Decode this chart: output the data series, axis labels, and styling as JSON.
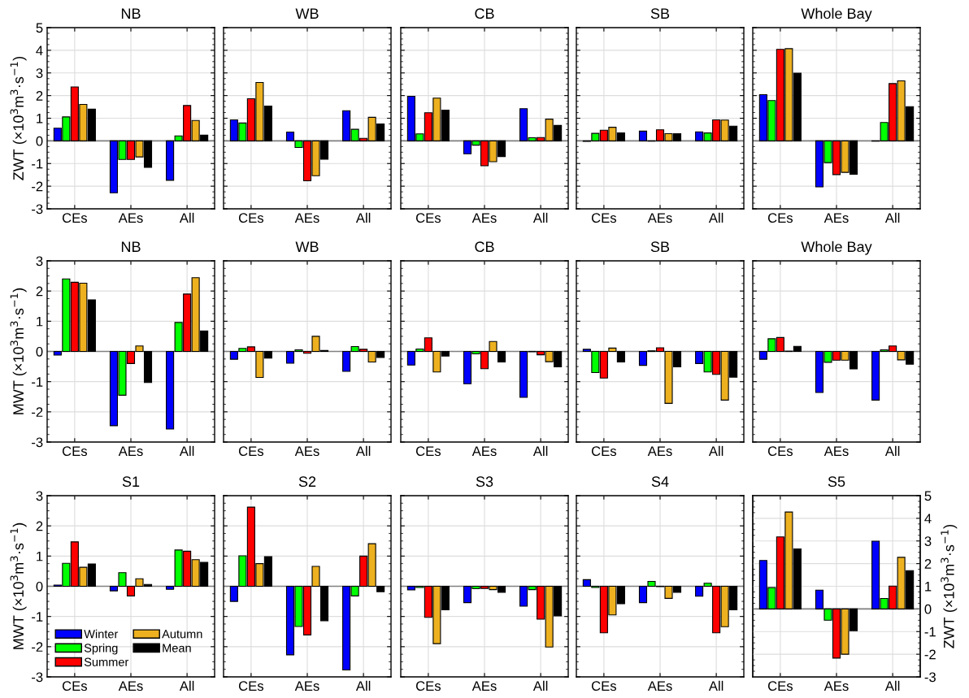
{
  "chart_data": [
    {
      "type": "bar",
      "title": "NB",
      "ylabel": "ZWT (×10$^{3}$m$^{3}$·s$^{−1}$)",
      "categories": [
        "CEs",
        "AEs",
        "All"
      ],
      "ylim": [
        -3,
        5
      ],
      "yticks": [
        -3,
        -2,
        -1,
        0,
        1,
        2,
        3,
        4,
        5
      ],
      "grid": true,
      "ref_lines": [
        {
          "axis": "y",
          "value": 0,
          "color": "#808080"
        }
      ],
      "series": [
        {
          "color": "#0000ff",
          "values": [
            0.56,
            -2.29,
            -1.74
          ]
        },
        {
          "color": "#00ff00",
          "values": [
            1.06,
            -0.82,
            0.22
          ]
        },
        {
          "color": "#ff0000",
          "values": [
            2.38,
            -0.82,
            1.56
          ]
        },
        {
          "color": "#edb120",
          "values": [
            1.61,
            -0.71,
            0.9
          ]
        },
        {
          "color": "#000000",
          "values": [
            1.4,
            -1.17,
            0.25
          ]
        }
      ]
    },
    {
      "type": "bar",
      "title": "WB",
      "categories": [
        "CEs",
        "AEs",
        "All"
      ],
      "ylim": [
        -3,
        5
      ],
      "yticks": [
        -3,
        -2,
        -1,
        0,
        1,
        2,
        3,
        4,
        5
      ],
      "grid": true,
      "tick_labels": "x",
      "ref_lines": [
        {
          "axis": "y",
          "value": 0,
          "color": "#808080"
        }
      ],
      "series": [
        {
          "color": "#0000ff",
          "values": [
            0.93,
            0.39,
            1.33
          ]
        },
        {
          "color": "#00ff00",
          "values": [
            0.79,
            -0.29,
            0.51
          ]
        },
        {
          "color": "#ff0000",
          "values": [
            1.86,
            -1.76,
            0.11
          ]
        },
        {
          "color": "#edb120",
          "values": [
            2.58,
            -1.54,
            1.04
          ]
        },
        {
          "color": "#000000",
          "values": [
            1.54,
            -0.81,
            0.75
          ]
        }
      ]
    },
    {
      "type": "bar",
      "title": "CB",
      "categories": [
        "CEs",
        "AEs",
        "All"
      ],
      "ylim": [
        -3,
        5
      ],
      "yticks": [
        -3,
        -2,
        -1,
        0,
        1,
        2,
        3,
        4,
        5
      ],
      "grid": true,
      "tick_labels": "x",
      "ref_lines": [
        {
          "axis": "y",
          "value": 0,
          "color": "#808080"
        }
      ],
      "series": [
        {
          "color": "#0000ff",
          "values": [
            1.97,
            -0.57,
            1.42
          ]
        },
        {
          "color": "#00ff00",
          "values": [
            0.31,
            -0.19,
            0.14
          ]
        },
        {
          "color": "#ff0000",
          "values": [
            1.24,
            -1.1,
            0.15
          ]
        },
        {
          "color": "#edb120",
          "values": [
            1.89,
            -0.92,
            0.96
          ]
        },
        {
          "color": "#000000",
          "values": [
            1.36,
            -0.69,
            0.68
          ]
        }
      ]
    },
    {
      "type": "bar",
      "title": "SB",
      "categories": [
        "CEs",
        "AEs",
        "All"
      ],
      "ylim": [
        -3,
        5
      ],
      "yticks": [
        -3,
        -2,
        -1,
        0,
        1,
        2,
        3,
        4,
        5
      ],
      "grid": true,
      "tick_labels": "x",
      "ref_lines": [
        {
          "axis": "y",
          "value": 0,
          "color": "#808080"
        }
      ],
      "series": [
        {
          "color": "#0000ff",
          "values": [
            -0.02,
            0.43,
            0.4
          ]
        },
        {
          "color": "#00ff00",
          "values": [
            0.33,
            -0.01,
            0.35
          ]
        },
        {
          "color": "#ff0000",
          "values": [
            0.47,
            0.49,
            0.93
          ]
        },
        {
          "color": "#edb120",
          "values": [
            0.6,
            0.32,
            0.92
          ]
        },
        {
          "color": "#000000",
          "values": [
            0.35,
            0.32,
            0.65
          ]
        }
      ]
    },
    {
      "type": "bar",
      "title": "Whole Bay",
      "categories": [
        "CEs",
        "AEs",
        "All"
      ],
      "ylim": [
        -3,
        5
      ],
      "yticks": [
        -3,
        -2,
        -1,
        0,
        1,
        2,
        3,
        4,
        5
      ],
      "grid": true,
      "tick_labels": "x",
      "ref_lines": [
        {
          "axis": "y",
          "value": 0,
          "color": "#808080"
        }
      ],
      "series": [
        {
          "color": "#0000ff",
          "values": [
            2.04,
            -2.03,
            -0.01
          ]
        },
        {
          "color": "#00ff00",
          "values": [
            1.78,
            -0.96,
            0.81
          ]
        },
        {
          "color": "#ff0000",
          "values": [
            4.04,
            -1.49,
            2.53
          ]
        },
        {
          "color": "#edb120",
          "values": [
            4.07,
            -1.39,
            2.65
          ]
        },
        {
          "color": "#000000",
          "values": [
            2.99,
            -1.47,
            1.51
          ]
        }
      ]
    },
    {
      "type": "bar",
      "title": "NB",
      "ylabel": "MWT (×10$^{3}$m$^{3}$·s$^{−1}$)",
      "categories": [
        "CEs",
        "AEs",
        "All"
      ],
      "ylim": [
        -3,
        3
      ],
      "yticks": [
        -3,
        -2,
        -1,
        0,
        1,
        2,
        3
      ],
      "grid": true,
      "ref_lines": [
        {
          "axis": "y",
          "value": 0,
          "color": "#808080"
        }
      ],
      "series": [
        {
          "color": "#0000ff",
          "values": [
            -0.12,
            -2.46,
            -2.57
          ]
        },
        {
          "color": "#00ff00",
          "values": [
            2.4,
            -1.45,
            0.96
          ]
        },
        {
          "color": "#ff0000",
          "values": [
            2.29,
            -0.4,
            1.9
          ]
        },
        {
          "color": "#edb120",
          "values": [
            2.26,
            0.18,
            2.44
          ]
        },
        {
          "color": "#000000",
          "values": [
            1.71,
            -1.03,
            0.68
          ]
        }
      ]
    },
    {
      "type": "bar",
      "title": "WB",
      "categories": [
        "CEs",
        "AEs",
        "All"
      ],
      "ylim": [
        -3,
        3
      ],
      "yticks": [
        -3,
        -2,
        -1,
        0,
        1,
        2,
        3
      ],
      "grid": true,
      "tick_labels": "x",
      "ref_lines": [
        {
          "axis": "y",
          "value": 0,
          "color": "#808080"
        }
      ],
      "series": [
        {
          "color": "#0000ff",
          "values": [
            -0.26,
            -0.39,
            -0.66
          ]
        },
        {
          "color": "#00ff00",
          "values": [
            0.1,
            0.05,
            0.16
          ]
        },
        {
          "color": "#ff0000",
          "values": [
            0.15,
            -0.06,
            0.07
          ]
        },
        {
          "color": "#edb120",
          "values": [
            -0.86,
            0.5,
            -0.35
          ]
        },
        {
          "color": "#000000",
          "values": [
            -0.22,
            0.03,
            -0.2
          ]
        }
      ]
    },
    {
      "type": "bar",
      "title": "CB",
      "categories": [
        "CEs",
        "AEs",
        "All"
      ],
      "ylim": [
        -3,
        3
      ],
      "yticks": [
        -3,
        -2,
        -1,
        0,
        1,
        2,
        3
      ],
      "grid": true,
      "tick_labels": "x",
      "ref_lines": [
        {
          "axis": "y",
          "value": 0,
          "color": "#808080"
        }
      ],
      "series": [
        {
          "color": "#0000ff",
          "values": [
            -0.45,
            -1.07,
            -1.52
          ]
        },
        {
          "color": "#00ff00",
          "values": [
            0.08,
            -0.08,
            -0.01
          ]
        },
        {
          "color": "#ff0000",
          "values": [
            0.45,
            -0.57,
            -0.11
          ]
        },
        {
          "color": "#edb120",
          "values": [
            -0.68,
            0.33,
            -0.34
          ]
        },
        {
          "color": "#000000",
          "values": [
            -0.15,
            -0.35,
            -0.51
          ]
        }
      ]
    },
    {
      "type": "bar",
      "title": "SB",
      "categories": [
        "CEs",
        "AEs",
        "All"
      ],
      "ylim": [
        -3,
        3
      ],
      "yticks": [
        -3,
        -2,
        -1,
        0,
        1,
        2,
        3
      ],
      "grid": true,
      "tick_labels": "x",
      "ref_lines": [
        {
          "axis": "y",
          "value": 0,
          "color": "#808080"
        }
      ],
      "series": [
        {
          "color": "#0000ff",
          "values": [
            0.07,
            -0.46,
            -0.4
          ]
        },
        {
          "color": "#00ff00",
          "values": [
            -0.7,
            0.02,
            -0.68
          ]
        },
        {
          "color": "#ff0000",
          "values": [
            -0.88,
            0.12,
            -0.76
          ]
        },
        {
          "color": "#edb120",
          "values": [
            0.11,
            -1.72,
            -1.61
          ]
        },
        {
          "color": "#000000",
          "values": [
            -0.35,
            -0.51,
            -0.85
          ]
        }
      ]
    },
    {
      "type": "bar",
      "title": "Whole Bay",
      "categories": [
        "CEs",
        "AEs",
        "All"
      ],
      "ylim": [
        -3,
        3
      ],
      "yticks": [
        -3,
        -2,
        -1,
        0,
        1,
        2,
        3
      ],
      "grid": true,
      "tick_labels": "x",
      "ref_lines": [
        {
          "axis": "y",
          "value": 0,
          "color": "#808080"
        }
      ],
      "series": [
        {
          "color": "#0000ff",
          "values": [
            -0.26,
            -1.36,
            -1.61
          ]
        },
        {
          "color": "#00ff00",
          "values": [
            0.42,
            -0.36,
            0.05
          ]
        },
        {
          "color": "#ff0000",
          "values": [
            0.46,
            -0.29,
            0.18
          ]
        },
        {
          "color": "#edb120",
          "values": [
            0.01,
            -0.29,
            -0.28
          ]
        },
        {
          "color": "#000000",
          "values": [
            0.17,
            -0.58,
            -0.42
          ]
        }
      ]
    },
    {
      "type": "bar",
      "title": "S1",
      "ylabel": "MWT (×10$^{3}$m$^{3}$·s$^{−1}$)",
      "categories": [
        "CEs",
        "AEs",
        "All"
      ],
      "ylim": [
        -3,
        3
      ],
      "yticks": [
        -3,
        -2,
        -1,
        0,
        1,
        2,
        3
      ],
      "grid": true,
      "legend": "bottom left",
      "ref_lines": [
        {
          "axis": "y",
          "value": 0,
          "color": "#808080"
        }
      ],
      "series": [
        {
          "name": "Winter",
          "color": "#0000ff",
          "values": [
            0.04,
            -0.15,
            -0.1
          ]
        },
        {
          "name": "Spring",
          "color": "#00ff00",
          "values": [
            0.76,
            0.45,
            1.2
          ]
        },
        {
          "name": "Summer",
          "color": "#ff0000",
          "values": [
            1.47,
            -0.32,
            1.16
          ]
        },
        {
          "name": "Autumn",
          "color": "#edb120",
          "values": [
            0.63,
            0.25,
            0.88
          ]
        },
        {
          "name": "Mean",
          "color": "#000000",
          "values": [
            0.74,
            0.06,
            0.79
          ]
        }
      ]
    },
    {
      "type": "bar",
      "title": "S2",
      "categories": [
        "CEs",
        "AEs",
        "All"
      ],
      "ylim": [
        -3,
        3
      ],
      "yticks": [
        -3,
        -2,
        -1,
        0,
        1,
        2,
        3
      ],
      "grid": true,
      "tick_labels": "x",
      "ref_lines": [
        {
          "axis": "y",
          "value": 0,
          "color": "#808080"
        }
      ],
      "series": [
        {
          "color": "#0000ff",
          "values": [
            -0.5,
            -2.27,
            -2.77
          ]
        },
        {
          "color": "#00ff00",
          "values": [
            1.01,
            -1.33,
            -0.32
          ]
        },
        {
          "color": "#ff0000",
          "values": [
            2.62,
            -1.61,
            1.0
          ]
        },
        {
          "color": "#edb120",
          "values": [
            0.75,
            0.66,
            1.41
          ]
        },
        {
          "color": "#000000",
          "values": [
            0.98,
            -1.14,
            -0.18
          ]
        }
      ]
    },
    {
      "type": "bar",
      "title": "S3",
      "categories": [
        "CEs",
        "AEs",
        "All"
      ],
      "ylim": [
        -3,
        3
      ],
      "yticks": [
        -3,
        -2,
        -1,
        0,
        1,
        2,
        3
      ],
      "grid": true,
      "tick_labels": "x",
      "ref_lines": [
        {
          "axis": "y",
          "value": 0,
          "color": "#808080"
        }
      ],
      "series": [
        {
          "color": "#0000ff",
          "values": [
            -0.12,
            -0.54,
            -0.66
          ]
        },
        {
          "color": "#00ff00",
          "values": [
            -0.04,
            -0.08,
            -0.11
          ]
        },
        {
          "color": "#ff0000",
          "values": [
            -1.03,
            -0.07,
            -1.09
          ]
        },
        {
          "color": "#edb120",
          "values": [
            -1.9,
            -0.11,
            -2.01
          ]
        },
        {
          "color": "#000000",
          "values": [
            -0.78,
            -0.2,
            -0.98
          ]
        }
      ]
    },
    {
      "type": "bar",
      "title": "S4",
      "categories": [
        "CEs",
        "AEs",
        "All"
      ],
      "ylim": [
        -3,
        3
      ],
      "yticks": [
        -3,
        -2,
        -1,
        0,
        1,
        2,
        3
      ],
      "grid": true,
      "tick_labels": "x",
      "ref_lines": [
        {
          "axis": "y",
          "value": 0,
          "color": "#808080"
        }
      ],
      "series": [
        {
          "color": "#0000ff",
          "values": [
            0.22,
            -0.54,
            -0.33
          ]
        },
        {
          "color": "#00ff00",
          "values": [
            -0.04,
            0.16,
            0.1
          ]
        },
        {
          "color": "#ff0000",
          "values": [
            -1.54,
            -0.01,
            -1.54
          ]
        },
        {
          "color": "#edb120",
          "values": [
            -0.95,
            -0.4,
            -1.34
          ]
        },
        {
          "color": "#000000",
          "values": [
            -0.58,
            -0.2,
            -0.78
          ]
        }
      ]
    },
    {
      "type": "bar",
      "title": "S5",
      "y2label": "ZWT (×10$^{3}$m$^{3}$·s$^{−1}$)",
      "categories": [
        "CEs",
        "AEs",
        "All"
      ],
      "y2lim": [
        -3,
        5
      ],
      "y2ticks": [
        -3,
        -2,
        -1,
        0,
        1,
        2,
        3,
        4,
        5
      ],
      "grid": true,
      "ref_lines": [
        {
          "axis": "y2",
          "value": 0,
          "color": "#808080"
        }
      ],
      "series": [
        {
          "axis": "y2",
          "color": "#0000ff",
          "values": [
            2.14,
            0.83,
            2.99
          ]
        },
        {
          "axis": "y2",
          "color": "#00ff00",
          "values": [
            0.94,
            -0.5,
            0.46
          ]
        },
        {
          "axis": "y2",
          "color": "#ff0000",
          "values": [
            3.18,
            -2.17,
            1.01
          ]
        },
        {
          "axis": "y2",
          "color": "#edb120",
          "values": [
            4.28,
            -2.0,
            2.28
          ]
        },
        {
          "axis": "y2",
          "color": "#000000",
          "values": [
            2.65,
            -0.96,
            1.69
          ]
        }
      ]
    }
  ]
}
